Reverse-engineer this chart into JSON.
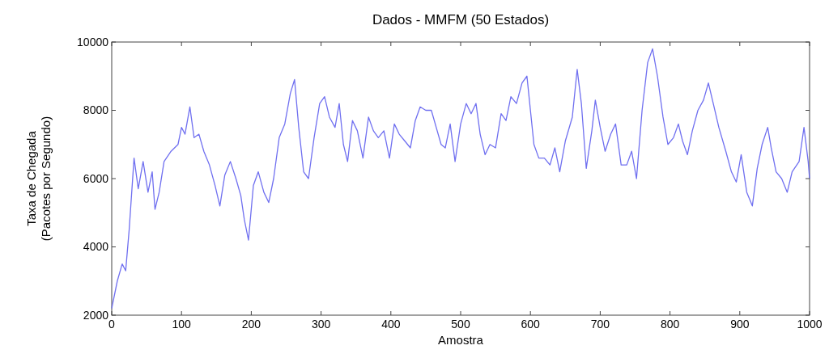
{
  "chart_data": {
    "type": "line",
    "title": "Dados - MMFM (50 Estados)",
    "xlabel": "Amostra",
    "ylabel": "Taxa de Chegada\n(Pacotes por Segundo)",
    "xlim": [
      0,
      1000
    ],
    "xticks": [
      0,
      100,
      200,
      300,
      400,
      500,
      600,
      700,
      800,
      900,
      1000
    ],
    "ylim": [
      2000,
      10000
    ],
    "yticks": [
      2000,
      4000,
      6000,
      8000,
      10000
    ],
    "grid": false,
    "line_style": "solid",
    "series": [
      {
        "color": "#7070f0",
        "x": [
          0,
          8,
          15,
          20,
          25,
          32,
          38,
          45,
          52,
          58,
          62,
          68,
          75,
          85,
          95,
          100,
          105,
          112,
          118,
          125,
          132,
          140,
          148,
          155,
          162,
          170,
          178,
          185,
          190,
          196,
          203,
          210,
          218,
          225,
          232,
          240,
          248,
          256,
          262,
          268,
          275,
          282,
          290,
          298,
          305,
          312,
          320,
          326,
          332,
          338,
          345,
          352,
          360,
          368,
          375,
          382,
          390,
          398,
          405,
          412,
          420,
          428,
          435,
          442,
          450,
          458,
          465,
          472,
          478,
          485,
          492,
          500,
          508,
          515,
          522,
          528,
          535,
          542,
          550,
          558,
          565,
          572,
          580,
          588,
          595,
          600,
          605,
          612,
          620,
          628,
          635,
          642,
          650,
          660,
          667,
          673,
          680,
          688,
          693,
          700,
          707,
          715,
          722,
          730,
          738,
          745,
          752,
          760,
          768,
          775,
          782,
          790,
          797,
          805,
          812,
          818,
          825,
          832,
          840,
          848,
          855,
          862,
          870,
          880,
          888,
          895,
          902,
          910,
          918,
          925,
          932,
          940,
          945,
          952,
          960,
          968,
          975,
          985,
          992,
          998,
          1000
        ],
        "values": [
          2200,
          3000,
          3500,
          3300,
          4500,
          6600,
          5700,
          6500,
          5600,
          6200,
          5100,
          5600,
          6500,
          6800,
          7000,
          7500,
          7300,
          8100,
          7200,
          7300,
          6800,
          6400,
          5800,
          5200,
          6100,
          6500,
          6000,
          5500,
          4800,
          4200,
          5800,
          6200,
          5600,
          5300,
          6000,
          7200,
          7600,
          8500,
          8900,
          7500,
          6200,
          6000,
          7200,
          8200,
          8400,
          7800,
          7500,
          8200,
          7000,
          6500,
          7700,
          7400,
          6600,
          7800,
          7400,
          7200,
          7400,
          6600,
          7600,
          7300,
          7100,
          6900,
          7700,
          8100,
          8000,
          8000,
          7500,
          7000,
          6900,
          7600,
          6500,
          7600,
          8200,
          7900,
          8200,
          7300,
          6700,
          7000,
          6900,
          7900,
          7700,
          8400,
          8200,
          8800,
          9000,
          8000,
          7000,
          6600,
          6600,
          6400,
          6900,
          6200,
          7100,
          7800,
          9200,
          8200,
          6300,
          7400,
          8300,
          7500,
          6800,
          7300,
          7600,
          6400,
          6400,
          6800,
          6000,
          8000,
          9400,
          9800,
          9000,
          7800,
          7000,
          7200,
          7600,
          7100,
          6700,
          7400,
          8000,
          8300,
          8800,
          8200,
          7500,
          6800,
          6200,
          5900,
          6700,
          5600,
          5200,
          6300,
          7000,
          7500,
          6900,
          6200,
          6000,
          5600,
          6200,
          6500,
          7500,
          6500,
          6000
        ]
      }
    ]
  }
}
